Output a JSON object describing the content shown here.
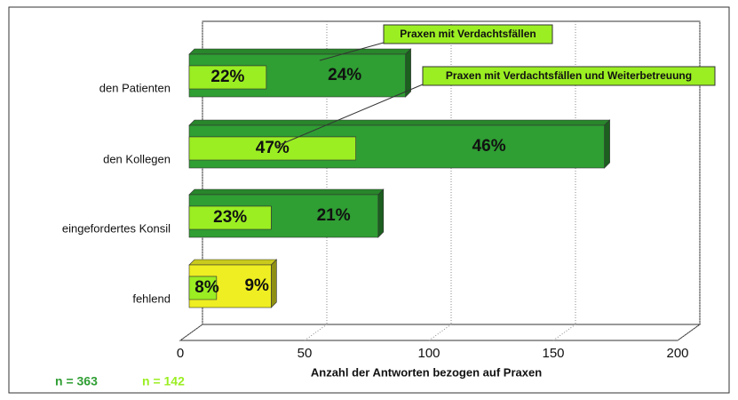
{
  "chart_data": {
    "type": "bar3d_horizontal",
    "x_label": "Anzahl der Antworten bezogen auf Praxen",
    "categories": [
      "den Patienten",
      "den Kollegen",
      "eingefordertes Konsil",
      "fehlend"
    ],
    "series": [
      {
        "name": "Praxen mit Verdachtsfällen",
        "color": "#2f9e33",
        "colors": [
          "#2f9e33",
          "#2f9e33",
          "#2f9e33",
          "#eeee22"
        ],
        "values": [
          87,
          167,
          76,
          33
        ],
        "value_labels": [
          "24%",
          "46%",
          "21%",
          "9%"
        ]
      },
      {
        "name": "Praxen mit Verdachtsfällen und Weiterbetreuung",
        "color": "#9bee22",
        "colors": [
          "#9bee22",
          "#9bee22",
          "#9bee22",
          "#9bee22"
        ],
        "values": [
          31,
          67,
          33,
          11
        ],
        "value_labels": [
          "22%",
          "47%",
          "23%",
          "8%"
        ]
      }
    ],
    "annotations": [
      "n = 363",
      "n = 142"
    ],
    "xlim": [
      0,
      200
    ],
    "xticks": [
      0,
      50,
      100,
      150,
      200
    ],
    "grid": true
  }
}
